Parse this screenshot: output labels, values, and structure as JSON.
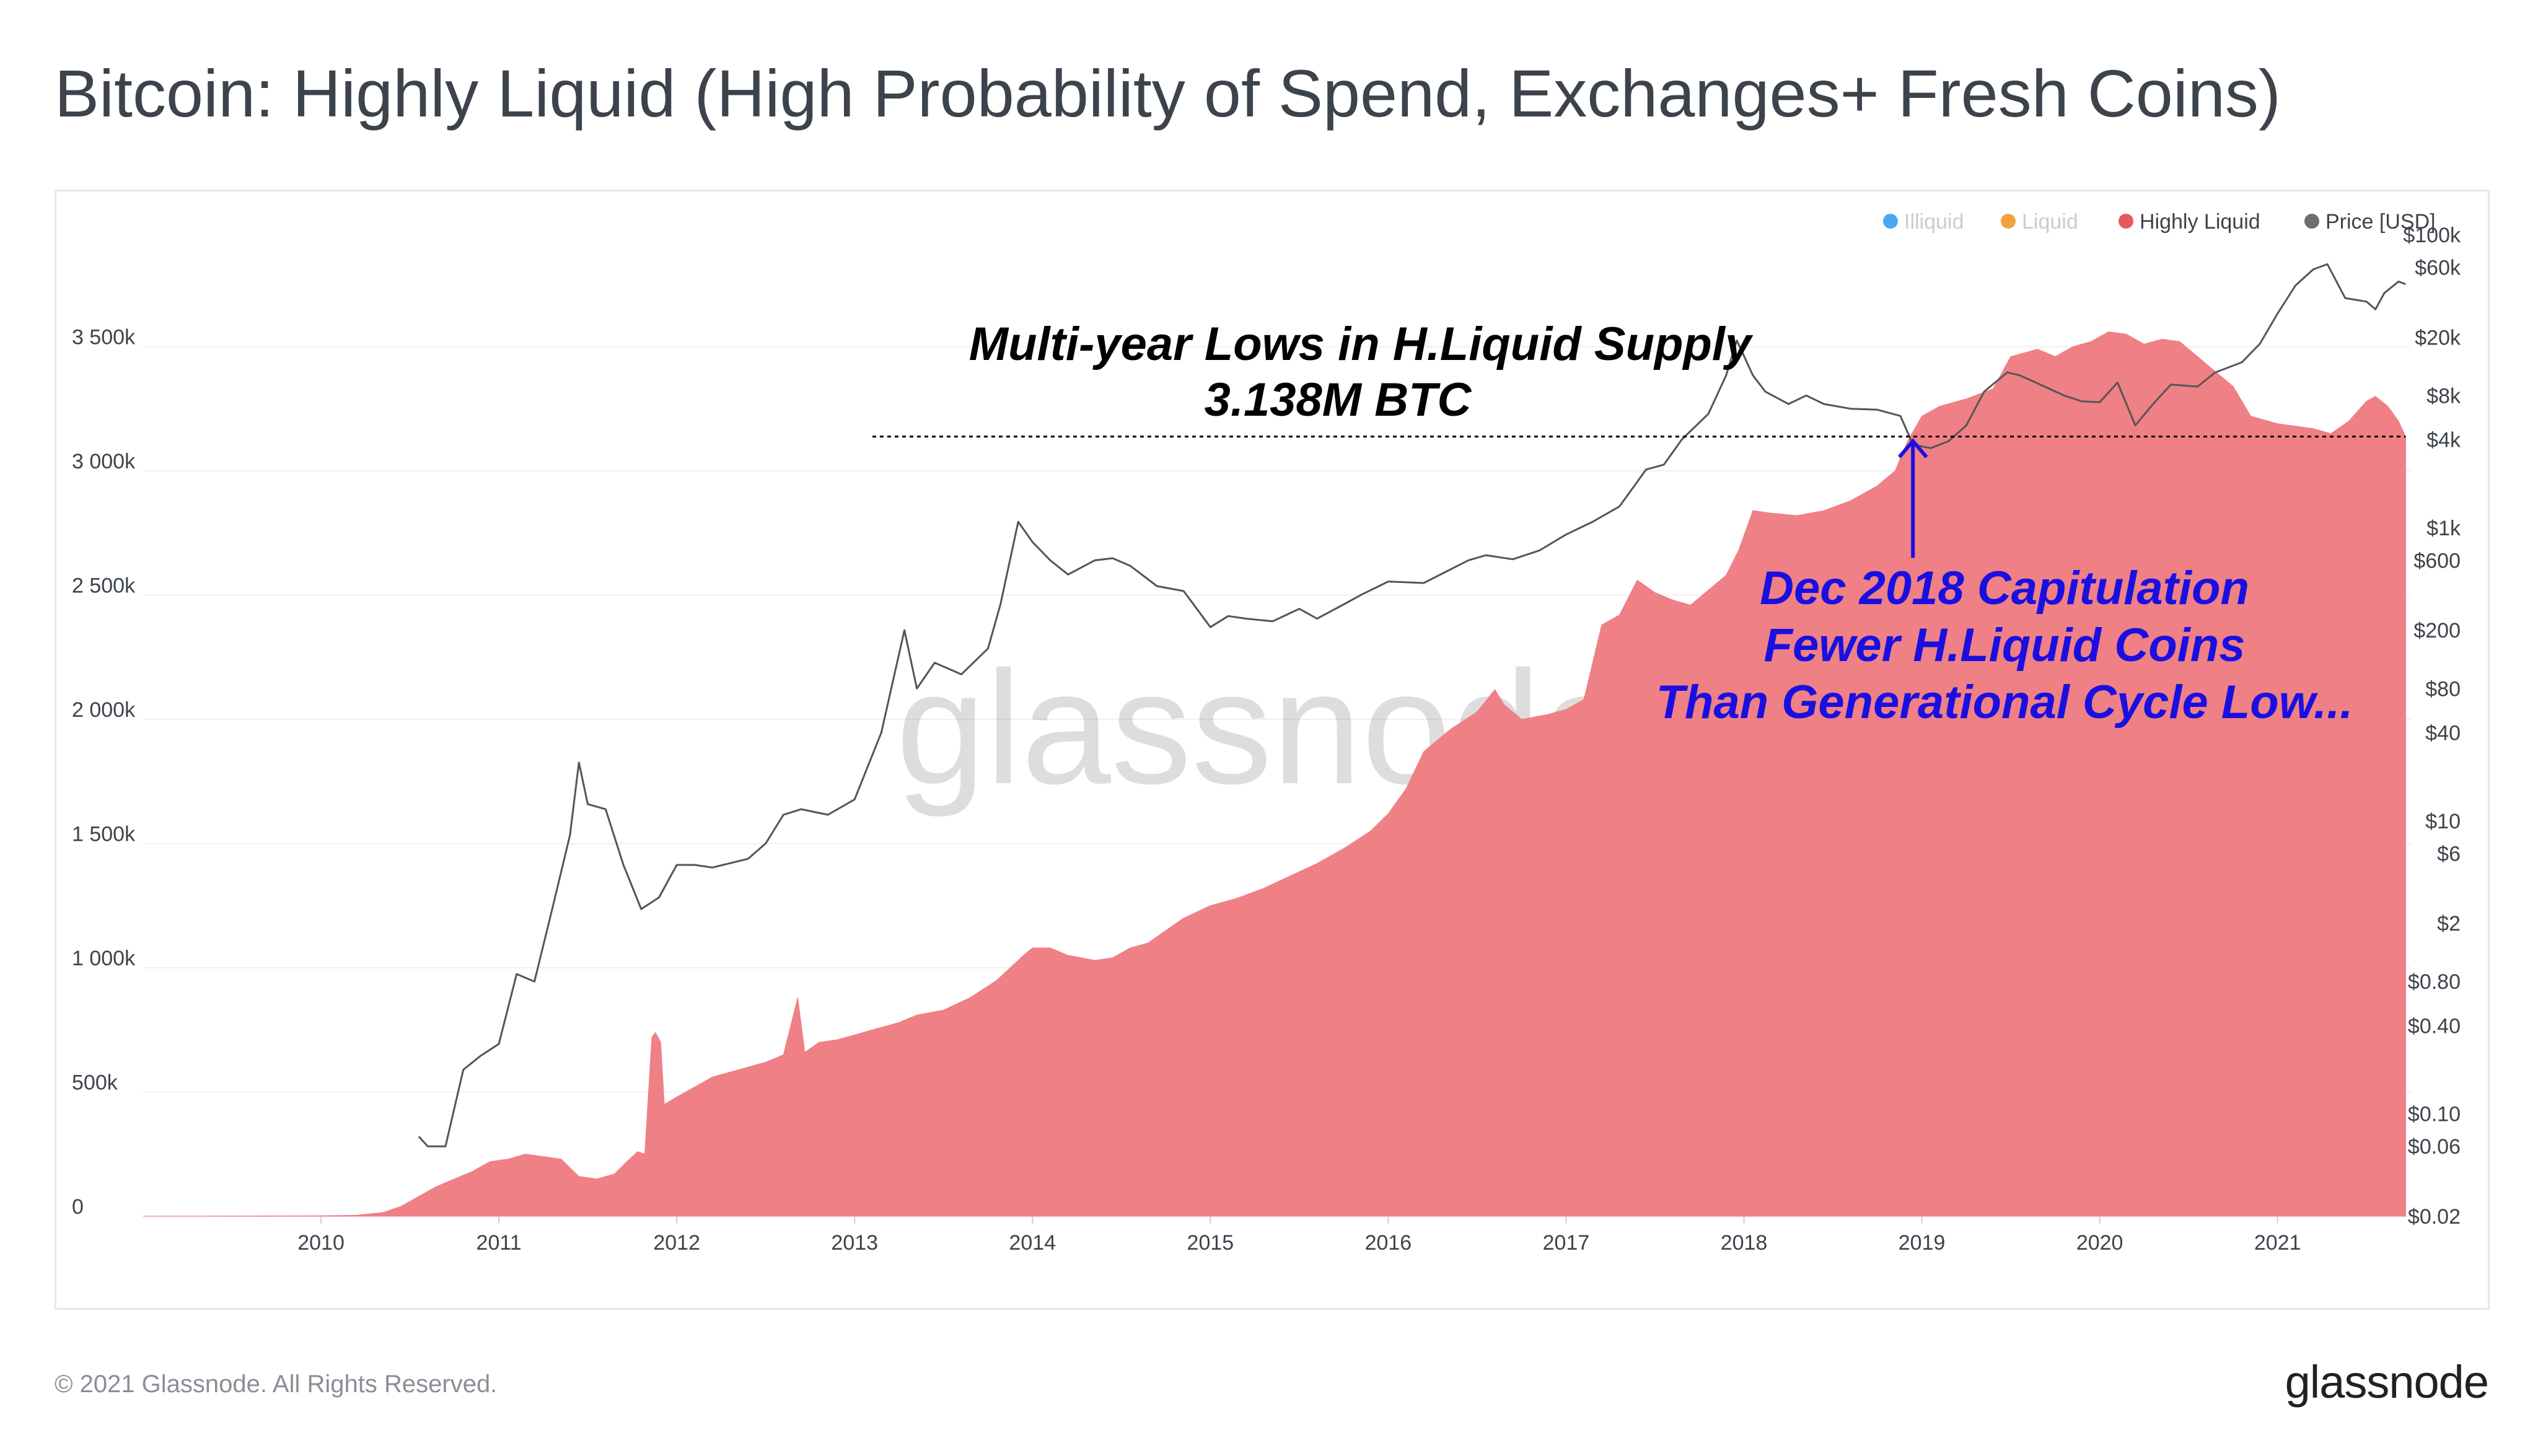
{
  "title": "Bitcoin: Highly Liquid (High Probability of Spend, Exchanges+ Fresh Coins)",
  "footer": {
    "copyright": "© 2021 Glassnode. All Rights Reserved.",
    "logo": "glassnode"
  },
  "watermark": "glassnode",
  "legend": [
    {
      "label": "Illiquid",
      "color": "#4aa8f0",
      "enabled": false
    },
    {
      "label": "Liquid",
      "color": "#f4a33c",
      "enabled": false
    },
    {
      "label": "Highly Liquid",
      "color": "#e8575f",
      "enabled": true
    },
    {
      "label": "Price [USD]",
      "color": "#6e6e6e",
      "enabled": true
    }
  ],
  "annotations": {
    "lows_line1": "Multi-year Lows in H.Liquid Supply",
    "lows_line2": "3.138M BTC",
    "cap_line1": "Dec 2018 Capitulation",
    "cap_line2": "Fewer H.Liquid Coins",
    "cap_line3": "Than Generational Cycle Low..."
  },
  "colors": {
    "area": "#ef8086",
    "price": "#555555",
    "annot_blue": "#1a0fe0",
    "grid": "#eef0f2"
  },
  "chart_data": {
    "type": "area",
    "x_ticks": [
      "2010",
      "2011",
      "2012",
      "2013",
      "2014",
      "2015",
      "2016",
      "2017",
      "2018",
      "2019",
      "2020",
      "2021"
    ],
    "x_range": [
      2009.0,
      2021.75
    ],
    "y_left_ticks": [
      {
        "label": "0",
        "value": 0
      },
      {
        "label": "500k",
        "value": 500000
      },
      {
        "label": "1 000k",
        "value": 1000000
      },
      {
        "label": "1 500k",
        "value": 1500000
      },
      {
        "label": "2 000k",
        "value": 2000000
      },
      {
        "label": "2 500k",
        "value": 2500000
      },
      {
        "label": "3 000k",
        "value": 3000000
      },
      {
        "label": "3 500k",
        "value": 3500000
      }
    ],
    "y_left_range": [
      0,
      3950000
    ],
    "y_right_ticks": [
      {
        "label": "$0.02",
        "value": 0.02
      },
      {
        "label": "$0.06",
        "value": 0.06
      },
      {
        "label": "$0.10",
        "value": 0.1
      },
      {
        "label": "$0.40",
        "value": 0.4
      },
      {
        "label": "$0.80",
        "value": 0.8
      },
      {
        "label": "$2",
        "value": 2
      },
      {
        "label": "$6",
        "value": 6
      },
      {
        "label": "$10",
        "value": 10
      },
      {
        "label": "$40",
        "value": 40
      },
      {
        "label": "$80",
        "value": 80
      },
      {
        "label": "$200",
        "value": 200
      },
      {
        "label": "$600",
        "value": 600
      },
      {
        "label": "$1k",
        "value": 1000
      },
      {
        "label": "$4k",
        "value": 4000
      },
      {
        "label": "$8k",
        "value": 8000
      },
      {
        "label": "$20k",
        "value": 20000
      },
      {
        "label": "$60k",
        "value": 60000
      },
      {
        "label": "$100k",
        "value": 100000
      }
    ],
    "y_right_scale": "log",
    "y_right_range": [
      0.02,
      100000
    ],
    "series": [
      {
        "name": "Highly Liquid",
        "axis": "left",
        "points": [
          [
            2009.0,
            0
          ],
          [
            2009.5,
            1000
          ],
          [
            2010.0,
            2000
          ],
          [
            2010.2,
            4000
          ],
          [
            2010.35,
            15000
          ],
          [
            2010.45,
            40000
          ],
          [
            2010.55,
            80000
          ],
          [
            2010.65,
            120000
          ],
          [
            2010.75,
            150000
          ],
          [
            2010.85,
            180000
          ],
          [
            2010.95,
            220000
          ],
          [
            2011.05,
            230000
          ],
          [
            2011.15,
            250000
          ],
          [
            2011.25,
            240000
          ],
          [
            2011.35,
            230000
          ],
          [
            2011.45,
            160000
          ],
          [
            2011.55,
            150000
          ],
          [
            2011.65,
            170000
          ],
          [
            2011.72,
            220000
          ],
          [
            2011.78,
            260000
          ],
          [
            2011.82,
            250000
          ],
          [
            2011.86,
            720000
          ],
          [
            2011.88,
            740000
          ],
          [
            2011.91,
            700000
          ],
          [
            2011.93,
            450000
          ],
          [
            2012.0,
            480000
          ],
          [
            2012.1,
            520000
          ],
          [
            2012.2,
            560000
          ],
          [
            2012.3,
            580000
          ],
          [
            2012.4,
            600000
          ],
          [
            2012.5,
            620000
          ],
          [
            2012.6,
            650000
          ],
          [
            2012.68,
            880000
          ],
          [
            2012.72,
            660000
          ],
          [
            2012.8,
            700000
          ],
          [
            2012.9,
            710000
          ],
          [
            2013.0,
            730000
          ],
          [
            2013.1,
            750000
          ],
          [
            2013.25,
            780000
          ],
          [
            2013.35,
            810000
          ],
          [
            2013.5,
            830000
          ],
          [
            2013.65,
            880000
          ],
          [
            2013.8,
            950000
          ],
          [
            2013.95,
            1050000
          ],
          [
            2014.0,
            1080000
          ],
          [
            2014.1,
            1080000
          ],
          [
            2014.2,
            1050000
          ],
          [
            2014.35,
            1030000
          ],
          [
            2014.45,
            1040000
          ],
          [
            2014.55,
            1080000
          ],
          [
            2014.65,
            1100000
          ],
          [
            2014.75,
            1150000
          ],
          [
            2014.85,
            1200000
          ],
          [
            2015.0,
            1250000
          ],
          [
            2015.15,
            1280000
          ],
          [
            2015.3,
            1320000
          ],
          [
            2015.45,
            1370000
          ],
          [
            2015.6,
            1420000
          ],
          [
            2015.75,
            1480000
          ],
          [
            2015.9,
            1550000
          ],
          [
            2016.0,
            1620000
          ],
          [
            2016.1,
            1720000
          ],
          [
            2016.2,
            1870000
          ],
          [
            2016.35,
            1960000
          ],
          [
            2016.5,
            2030000
          ],
          [
            2016.6,
            2120000
          ],
          [
            2016.65,
            2060000
          ],
          [
            2016.75,
            2000000
          ],
          [
            2016.9,
            2020000
          ],
          [
            2017.0,
            2040000
          ],
          [
            2017.1,
            2080000
          ],
          [
            2017.2,
            2380000
          ],
          [
            2017.3,
            2420000
          ],
          [
            2017.4,
            2560000
          ],
          [
            2017.5,
            2510000
          ],
          [
            2017.6,
            2480000
          ],
          [
            2017.7,
            2460000
          ],
          [
            2017.8,
            2520000
          ],
          [
            2017.9,
            2580000
          ],
          [
            2017.97,
            2680000
          ],
          [
            2018.05,
            2840000
          ],
          [
            2018.15,
            2830000
          ],
          [
            2018.3,
            2820000
          ],
          [
            2018.45,
            2840000
          ],
          [
            2018.6,
            2880000
          ],
          [
            2018.75,
            2940000
          ],
          [
            2018.85,
            3000000
          ],
          [
            2018.92,
            3120000
          ],
          [
            2019.0,
            3220000
          ],
          [
            2019.1,
            3260000
          ],
          [
            2019.25,
            3290000
          ],
          [
            2019.4,
            3330000
          ],
          [
            2019.5,
            3460000
          ],
          [
            2019.65,
            3490000
          ],
          [
            2019.75,
            3460000
          ],
          [
            2019.85,
            3500000
          ],
          [
            2019.95,
            3520000
          ],
          [
            2020.05,
            3560000
          ],
          [
            2020.15,
            3550000
          ],
          [
            2020.25,
            3510000
          ],
          [
            2020.35,
            3530000
          ],
          [
            2020.45,
            3520000
          ],
          [
            2020.55,
            3460000
          ],
          [
            2020.65,
            3400000
          ],
          [
            2020.75,
            3340000
          ],
          [
            2020.85,
            3220000
          ],
          [
            2021.0,
            3190000
          ],
          [
            2021.1,
            3180000
          ],
          [
            2021.2,
            3170000
          ],
          [
            2021.3,
            3150000
          ],
          [
            2021.4,
            3200000
          ],
          [
            2021.5,
            3280000
          ],
          [
            2021.55,
            3300000
          ],
          [
            2021.62,
            3260000
          ],
          [
            2021.68,
            3200000
          ],
          [
            2021.72,
            3138000
          ]
        ]
      },
      {
        "name": "Price [USD]",
        "axis": "right",
        "points": [
          [
            2010.55,
            0.07
          ],
          [
            2010.6,
            0.06
          ],
          [
            2010.7,
            0.06
          ],
          [
            2010.8,
            0.2
          ],
          [
            2010.9,
            0.25
          ],
          [
            2011.0,
            0.3
          ],
          [
            2011.1,
            0.9
          ],
          [
            2011.2,
            0.8
          ],
          [
            2011.3,
            2.5
          ],
          [
            2011.4,
            8
          ],
          [
            2011.45,
            25
          ],
          [
            2011.5,
            13
          ],
          [
            2011.6,
            12
          ],
          [
            2011.7,
            5
          ],
          [
            2011.8,
            2.5
          ],
          [
            2011.9,
            3
          ],
          [
            2012.0,
            5
          ],
          [
            2012.1,
            5
          ],
          [
            2012.2,
            4.8
          ],
          [
            2012.4,
            5.5
          ],
          [
            2012.5,
            7
          ],
          [
            2012.6,
            11
          ],
          [
            2012.7,
            12
          ],
          [
            2012.85,
            11
          ],
          [
            2013.0,
            14
          ],
          [
            2013.15,
            40
          ],
          [
            2013.28,
            200
          ],
          [
            2013.35,
            80
          ],
          [
            2013.45,
            120
          ],
          [
            2013.6,
            100
          ],
          [
            2013.75,
            150
          ],
          [
            2013.82,
            300
          ],
          [
            2013.92,
            1100
          ],
          [
            2014.0,
            800
          ],
          [
            2014.1,
            600
          ],
          [
            2014.2,
            480
          ],
          [
            2014.35,
            600
          ],
          [
            2014.45,
            620
          ],
          [
            2014.55,
            550
          ],
          [
            2014.7,
            400
          ],
          [
            2014.85,
            370
          ],
          [
            2015.0,
            210
          ],
          [
            2015.1,
            250
          ],
          [
            2015.2,
            240
          ],
          [
            2015.35,
            230
          ],
          [
            2015.5,
            280
          ],
          [
            2015.6,
            240
          ],
          [
            2015.75,
            300
          ],
          [
            2015.85,
            350
          ],
          [
            2016.0,
            430
          ],
          [
            2016.2,
            420
          ],
          [
            2016.45,
            600
          ],
          [
            2016.55,
            650
          ],
          [
            2016.7,
            610
          ],
          [
            2016.85,
            700
          ],
          [
            2017.0,
            900
          ],
          [
            2017.15,
            1100
          ],
          [
            2017.3,
            1400
          ],
          [
            2017.45,
            2500
          ],
          [
            2017.55,
            2700
          ],
          [
            2017.65,
            4000
          ],
          [
            2017.8,
            6000
          ],
          [
            2017.9,
            11000
          ],
          [
            2017.96,
            19000
          ],
          [
            2018.05,
            11000
          ],
          [
            2018.12,
            8500
          ],
          [
            2018.25,
            7000
          ],
          [
            2018.35,
            8000
          ],
          [
            2018.45,
            7000
          ],
          [
            2018.6,
            6500
          ],
          [
            2018.75,
            6400
          ],
          [
            2018.88,
            5800
          ],
          [
            2018.95,
            3700
          ],
          [
            2019.05,
            3500
          ],
          [
            2019.15,
            3900
          ],
          [
            2019.25,
            5000
          ],
          [
            2019.35,
            8500
          ],
          [
            2019.48,
            11500
          ],
          [
            2019.55,
            11000
          ],
          [
            2019.65,
            9700
          ],
          [
            2019.8,
            8000
          ],
          [
            2019.9,
            7300
          ],
          [
            2020.0,
            7200
          ],
          [
            2020.1,
            9800
          ],
          [
            2020.2,
            5000
          ],
          [
            2020.3,
            7000
          ],
          [
            2020.4,
            9500
          ],
          [
            2020.55,
            9200
          ],
          [
            2020.65,
            11500
          ],
          [
            2020.8,
            13500
          ],
          [
            2020.9,
            18000
          ],
          [
            2021.0,
            29000
          ],
          [
            2021.1,
            45000
          ],
          [
            2021.2,
            58000
          ],
          [
            2021.28,
            63000
          ],
          [
            2021.38,
            37000
          ],
          [
            2021.5,
            35000
          ],
          [
            2021.55,
            31000
          ],
          [
            2021.6,
            40000
          ],
          [
            2021.68,
            48000
          ],
          [
            2021.72,
            46000
          ]
        ]
      }
    ],
    "reference_line": {
      "value": 3138000,
      "x_start": 2013.1,
      "x_end": 2021.72
    },
    "arrow": {
      "x": 2018.95,
      "y_from": 2650000,
      "y_to": 3120000
    }
  }
}
